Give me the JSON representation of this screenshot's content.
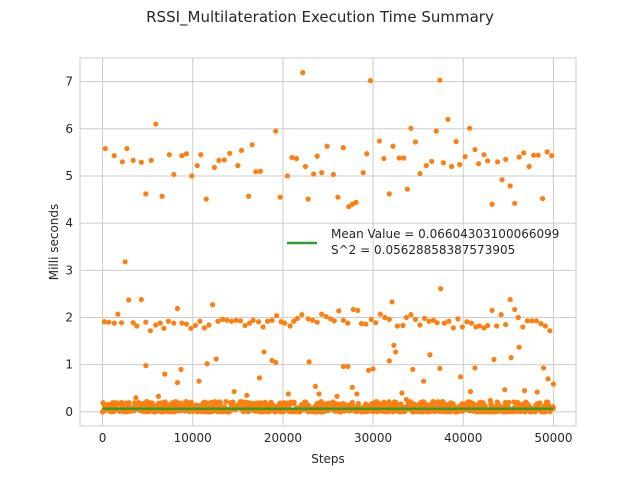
{
  "chart_data": {
    "type": "scatter",
    "title": "RSSI_Multilateration Execution Time Summary",
    "xlabel": "Steps",
    "ylabel": "Milli seconds",
    "xlim": [
      -2500,
      52500
    ],
    "ylim": [
      -0.3,
      7.5
    ],
    "xticks": [
      0,
      10000,
      20000,
      30000,
      40000,
      50000
    ],
    "xtick_labels": [
      "0",
      "10000",
      "20000",
      "30000",
      "40000",
      "50000"
    ],
    "yticks": [
      0,
      1,
      2,
      3,
      4,
      5,
      6,
      7
    ],
    "ytick_labels": [
      "0",
      "1",
      "2",
      "3",
      "4",
      "5",
      "6",
      "7"
    ],
    "grid": true,
    "legend_position": "center-right",
    "series": [
      {
        "name": "",
        "kind": "scatter",
        "color": "#ff7f0e",
        "points": [
          [
            300,
            5.58
          ],
          [
            1300,
            5.43
          ],
          [
            2200,
            5.3
          ],
          [
            2700,
            5.58
          ],
          [
            3400,
            5.33
          ],
          [
            4300,
            5.29
          ],
          [
            4800,
            4.62
          ],
          [
            5400,
            5.33
          ],
          [
            5900,
            6.1
          ],
          [
            6600,
            4.57
          ],
          [
            7400,
            5.45
          ],
          [
            7900,
            5.03
          ],
          [
            8800,
            5.43
          ],
          [
            9300,
            5.47
          ],
          [
            9900,
            5.0
          ],
          [
            10500,
            5.22
          ],
          [
            10900,
            5.45
          ],
          [
            11500,
            4.51
          ],
          [
            12400,
            5.18
          ],
          [
            12900,
            5.33
          ],
          [
            13500,
            5.34
          ],
          [
            14100,
            5.48
          ],
          [
            15000,
            5.22
          ],
          [
            15400,
            5.54
          ],
          [
            16200,
            4.57
          ],
          [
            16600,
            5.66
          ],
          [
            17000,
            5.09
          ],
          [
            17500,
            5.1
          ],
          [
            19200,
            5.95
          ],
          [
            19700,
            4.55
          ],
          [
            20500,
            5.0
          ],
          [
            21000,
            5.39
          ],
          [
            21500,
            5.37
          ],
          [
            22200,
            7.19
          ],
          [
            22500,
            5.2
          ],
          [
            22800,
            4.51
          ],
          [
            23400,
            5.04
          ],
          [
            23800,
            5.42
          ],
          [
            24300,
            5.07
          ],
          [
            24900,
            5.63
          ],
          [
            25600,
            5.03
          ],
          [
            26100,
            4.55
          ],
          [
            26700,
            5.6
          ],
          [
            27300,
            4.35
          ],
          [
            27700,
            4.4
          ],
          [
            28100,
            4.44
          ],
          [
            28900,
            5.07
          ],
          [
            29300,
            5.47
          ],
          [
            29700,
            7.02
          ],
          [
            30700,
            5.74
          ],
          [
            31200,
            5.37
          ],
          [
            31800,
            4.62
          ],
          [
            32200,
            5.63
          ],
          [
            32900,
            5.38
          ],
          [
            33400,
            5.38
          ],
          [
            33800,
            4.72
          ],
          [
            34200,
            6.01
          ],
          [
            34700,
            5.72
          ],
          [
            35200,
            5.05
          ],
          [
            35900,
            5.22
          ],
          [
            36500,
            5.31
          ],
          [
            37000,
            5.95
          ],
          [
            37400,
            7.03
          ],
          [
            37800,
            5.28
          ],
          [
            38300,
            6.2
          ],
          [
            38700,
            5.2
          ],
          [
            39200,
            5.73
          ],
          [
            39600,
            5.24
          ],
          [
            40200,
            5.41
          ],
          [
            40700,
            6.01
          ],
          [
            41300,
            5.56
          ],
          [
            41700,
            5.26
          ],
          [
            42300,
            5.45
          ],
          [
            42700,
            5.32
          ],
          [
            43200,
            4.4
          ],
          [
            43800,
            5.3
          ],
          [
            44300,
            4.92
          ],
          [
            44700,
            5.35
          ],
          [
            45200,
            4.79
          ],
          [
            45700,
            4.42
          ],
          [
            46200,
            5.4
          ],
          [
            46700,
            5.49
          ],
          [
            47300,
            5.2
          ],
          [
            47800,
            5.44
          ],
          [
            48300,
            5.44
          ],
          [
            48800,
            4.52
          ],
          [
            49300,
            5.51
          ],
          [
            49800,
            5.43
          ],
          [
            200,
            1.91
          ],
          [
            700,
            1.9
          ],
          [
            1300,
            1.88
          ],
          [
            1700,
            2.07
          ],
          [
            2100,
            1.89
          ],
          [
            2900,
            2.37
          ],
          [
            3400,
            1.89
          ],
          [
            3800,
            1.82
          ],
          [
            4300,
            2.38
          ],
          [
            4800,
            1.9
          ],
          [
            5300,
            1.72
          ],
          [
            5900,
            1.84
          ],
          [
            6400,
            1.88
          ],
          [
            6800,
            1.77
          ],
          [
            7300,
            1.92
          ],
          [
            7900,
            1.88
          ],
          [
            8300,
            2.19
          ],
          [
            8800,
            1.88
          ],
          [
            9300,
            1.86
          ],
          [
            9800,
            1.77
          ],
          [
            10300,
            1.83
          ],
          [
            10800,
            1.92
          ],
          [
            11300,
            1.78
          ],
          [
            11800,
            1.84
          ],
          [
            12200,
            2.27
          ],
          [
            12800,
            1.92
          ],
          [
            13300,
            1.96
          ],
          [
            13800,
            1.94
          ],
          [
            14300,
            1.92
          ],
          [
            14800,
            1.94
          ],
          [
            15300,
            1.93
          ],
          [
            15800,
            1.83
          ],
          [
            16300,
            1.88
          ],
          [
            16700,
            1.94
          ],
          [
            17300,
            1.91
          ],
          [
            17800,
            1.8
          ],
          [
            18300,
            1.92
          ],
          [
            18800,
            1.94
          ],
          [
            19300,
            2.04
          ],
          [
            19800,
            1.91
          ],
          [
            20200,
            1.88
          ],
          [
            20800,
            1.82
          ],
          [
            21200,
            1.92
          ],
          [
            21600,
            1.98
          ],
          [
            22100,
            2.06
          ],
          [
            22800,
            1.97
          ],
          [
            23300,
            1.94
          ],
          [
            23800,
            1.9
          ],
          [
            24300,
            2.07
          ],
          [
            24800,
            2.02
          ],
          [
            25300,
            1.97
          ],
          [
            25700,
            1.93
          ],
          [
            26200,
            2.14
          ],
          [
            26700,
            1.94
          ],
          [
            27200,
            1.88
          ],
          [
            27800,
            2.17
          ],
          [
            28300,
            2.15
          ],
          [
            28700,
            1.87
          ],
          [
            29200,
            1.86
          ],
          [
            29800,
            1.96
          ],
          [
            30300,
            1.89
          ],
          [
            30800,
            2.07
          ],
          [
            31300,
            2.0
          ],
          [
            31800,
            1.96
          ],
          [
            32100,
            2.33
          ],
          [
            32700,
            1.82
          ],
          [
            33300,
            1.83
          ],
          [
            33700,
            2.0
          ],
          [
            34200,
            2.06
          ],
          [
            34700,
            1.96
          ],
          [
            35200,
            1.84
          ],
          [
            35700,
            1.98
          ],
          [
            36200,
            1.92
          ],
          [
            36700,
            1.94
          ],
          [
            37100,
            1.89
          ],
          [
            37500,
            2.61
          ],
          [
            37900,
            1.88
          ],
          [
            38400,
            1.92
          ],
          [
            38900,
            1.78
          ],
          [
            39400,
            1.97
          ],
          [
            39900,
            1.8
          ],
          [
            40400,
            1.91
          ],
          [
            40900,
            1.88
          ],
          [
            41400,
            1.8
          ],
          [
            41800,
            1.82
          ],
          [
            42300,
            1.78
          ],
          [
            42700,
            1.83
          ],
          [
            43200,
            2.15
          ],
          [
            43700,
            1.82
          ],
          [
            44200,
            2.06
          ],
          [
            44700,
            1.85
          ],
          [
            45200,
            2.38
          ],
          [
            45700,
            2.17
          ],
          [
            46100,
            2.0
          ],
          [
            46600,
            1.8
          ],
          [
            47100,
            1.93
          ],
          [
            47600,
            1.93
          ],
          [
            48100,
            1.93
          ],
          [
            48600,
            1.87
          ],
          [
            49100,
            1.82
          ],
          [
            49600,
            1.72
          ],
          [
            2500,
            3.18
          ],
          [
            4800,
            0.98
          ],
          [
            6900,
            0.8
          ],
          [
            8300,
            0.62
          ],
          [
            8700,
            0.9
          ],
          [
            10700,
            0.65
          ],
          [
            11600,
            1.02
          ],
          [
            12600,
            1.12
          ],
          [
            14600,
            0.43
          ],
          [
            17400,
            0.72
          ],
          [
            17900,
            1.27
          ],
          [
            18800,
            1.09
          ],
          [
            19200,
            1.05
          ],
          [
            20600,
            0.38
          ],
          [
            22900,
            1.06
          ],
          [
            23600,
            0.54
          ],
          [
            24000,
            0.38
          ],
          [
            26700,
            0.96
          ],
          [
            27200,
            0.96
          ],
          [
            27700,
            0.52
          ],
          [
            28200,
            0.38
          ],
          [
            29500,
            0.88
          ],
          [
            30000,
            0.91
          ],
          [
            31800,
            1.08
          ],
          [
            32300,
            1.41
          ],
          [
            32500,
            1.27
          ],
          [
            33200,
            0.4
          ],
          [
            33700,
            0.26
          ],
          [
            34400,
            0.9
          ],
          [
            35600,
            0.65
          ],
          [
            36300,
            1.21
          ],
          [
            37400,
            0.92
          ],
          [
            39700,
            0.74
          ],
          [
            40800,
            0.43
          ],
          [
            41300,
            0.93
          ],
          [
            43000,
            0.24
          ],
          [
            43400,
            1.11
          ],
          [
            44600,
            0.47
          ],
          [
            45300,
            1.15
          ],
          [
            46200,
            1.37
          ],
          [
            46800,
            0.45
          ],
          [
            48200,
            0.42
          ],
          [
            48900,
            0.93
          ],
          [
            49400,
            0.7
          ],
          [
            50000,
            0.59
          ],
          [
            3700,
            0.3
          ],
          [
            6200,
            0.33
          ],
          [
            16000,
            0.35
          ],
          [
            26000,
            0.33
          ]
        ],
        "baseline": {
          "y_min": 0.0,
          "y_max": 0.22,
          "x_min": 0,
          "x_max": 50000
        }
      },
      {
        "name": "",
        "kind": "line",
        "color": "#2ca02c",
        "x": [
          0,
          50000
        ],
        "y": [
          0.06604303100066099,
          0.06604303100066099
        ]
      }
    ],
    "legend": {
      "lines": [
        "Mean Value = 0.06604303100066099",
        "S^2 = 0.05628858387573905"
      ],
      "handle_color": "#2ca02c"
    }
  }
}
